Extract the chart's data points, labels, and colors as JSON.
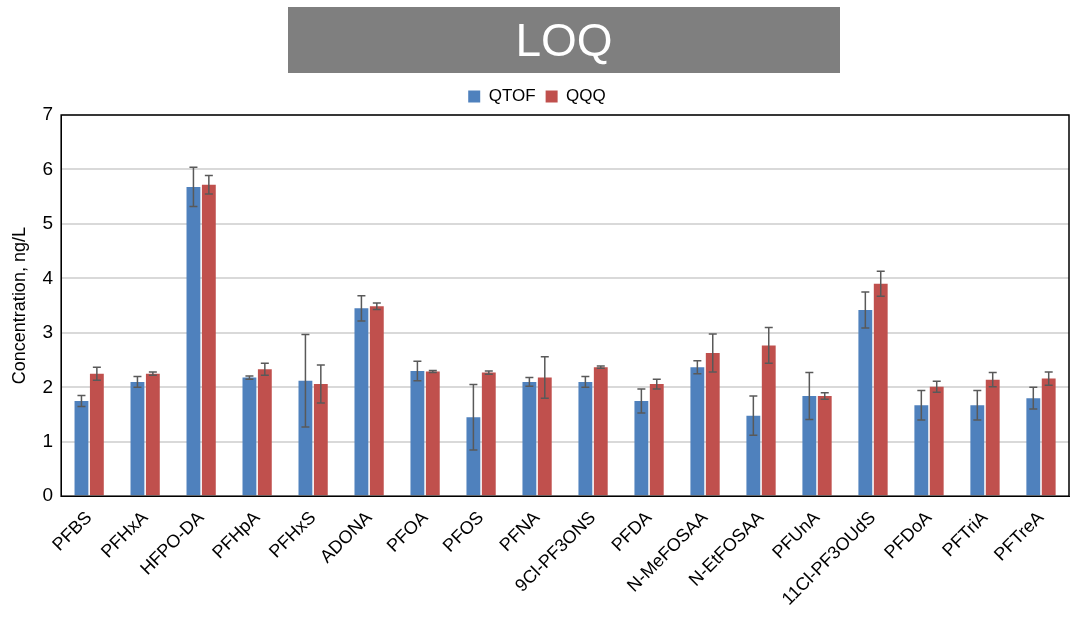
{
  "chart_data": {
    "type": "bar",
    "title": "LOQ",
    "ylabel": "Concentration, ng/L",
    "categories": [
      "PFBS",
      "PFHxA",
      "HFPO-DA",
      "PFHpA",
      "PFHxS",
      "ADONA",
      "PFOA",
      "PFOS",
      "PFNA",
      "9Cl-PF3ONS",
      "PFDA",
      "N-MeFOSAA",
      "N-EtFOSAA",
      "PFUnA",
      "11Cl-PF3OUdS",
      "PFDoA",
      "PFTriA",
      "PFTreA"
    ],
    "series": [
      {
        "name": "QTOF",
        "color": "#4f81bd",
        "values": [
          1.75,
          2.1,
          5.68,
          2.18,
          2.12,
          3.45,
          2.3,
          1.45,
          2.1,
          2.1,
          1.75,
          2.37,
          1.48,
          1.84,
          3.42,
          1.67,
          1.67,
          1.8
        ],
        "errors": [
          0.1,
          0.1,
          0.36,
          0.03,
          0.85,
          0.23,
          0.18,
          0.6,
          0.08,
          0.1,
          0.22,
          0.12,
          0.36,
          0.43,
          0.33,
          0.27,
          0.27,
          0.2
        ]
      },
      {
        "name": "QQQ",
        "color": "#c0504d",
        "values": [
          2.25,
          2.25,
          5.72,
          2.33,
          2.06,
          3.49,
          2.29,
          2.27,
          2.18,
          2.37,
          2.06,
          2.63,
          2.77,
          1.84,
          3.9,
          2.01,
          2.14,
          2.16
        ],
        "errors": [
          0.12,
          0.03,
          0.17,
          0.11,
          0.35,
          0.06,
          0.02,
          0.03,
          0.38,
          0.02,
          0.09,
          0.35,
          0.33,
          0.06,
          0.23,
          0.1,
          0.13,
          0.12
        ]
      }
    ],
    "ylim": [
      0,
      7
    ],
    "yticks": [
      0,
      1,
      2,
      3,
      4,
      5,
      6,
      7
    ],
    "grid": "y",
    "legend": "top"
  }
}
